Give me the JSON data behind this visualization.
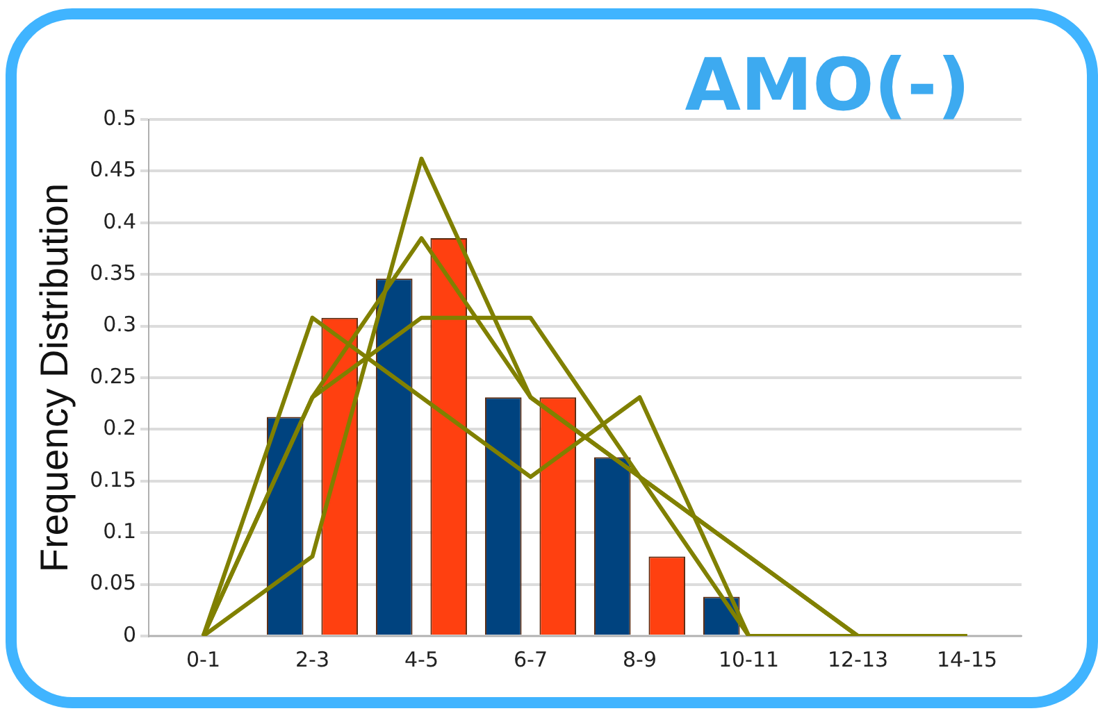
{
  "chart_data": {
    "type": "bar",
    "title": "AMO(-)",
    "ylabel": "Frequency Distribution",
    "categories": [
      "0-1",
      "2-3",
      "4-5",
      "6-7",
      "8-9",
      "10-11",
      "12-13",
      "14-15"
    ],
    "series": [
      {
        "color": "#00437f",
        "values": [
          0,
          0.212,
          0.346,
          0.231,
          0.173,
          0.038,
          0,
          0
        ]
      },
      {
        "color": "#ff4010",
        "values": [
          0,
          0.308,
          0.385,
          0.231,
          0.077,
          0,
          0,
          0
        ]
      },
      {
        "type": "line",
        "color": "#808000",
        "values": [
          0,
          0.308,
          0.231,
          0.154,
          0.231,
          0,
          0,
          0
        ]
      },
      {
        "type": "line",
        "color": "#808000",
        "values": [
          0,
          0.077,
          0.462,
          0.231,
          0.154,
          0.077,
          0,
          0
        ]
      },
      {
        "type": "line",
        "color": "#808000",
        "values": [
          0,
          0.231,
          0.385,
          0.231,
          0.154,
          0.077,
          0,
          0
        ]
      },
      {
        "type": "line",
        "color": "#808000",
        "values": [
          0,
          0.231,
          0.308,
          0.308,
          0.154,
          0,
          0,
          0
        ]
      }
    ],
    "ylim": [
      0,
      0.5
    ],
    "yticks": [
      0,
      0.05,
      0.1,
      0.15,
      0.2,
      0.25,
      0.3,
      0.35,
      0.4,
      0.45,
      0.5
    ],
    "grid": "y",
    "legend": false,
    "marker": "none",
    "line_style": "solid"
  }
}
